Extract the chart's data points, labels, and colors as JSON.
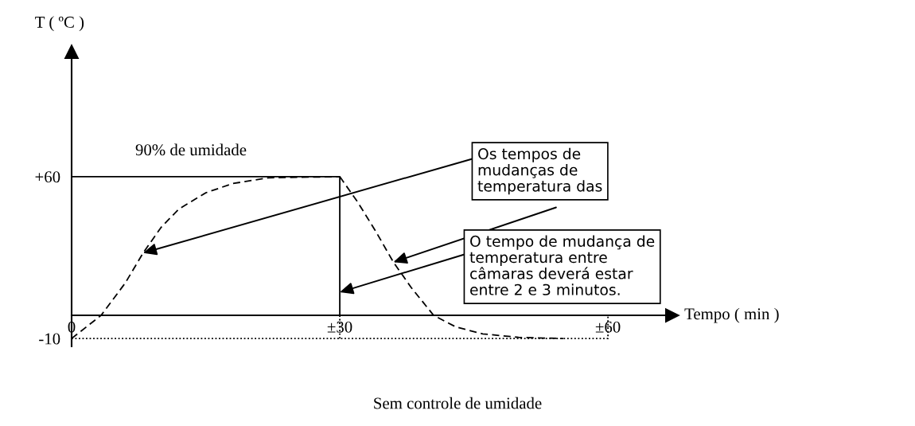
{
  "chart_data": {
    "type": "line",
    "xlabel": "Tempo ( min )",
    "ylabel": "T ( ºC )",
    "xlim": [
      0,
      67.2
    ],
    "ylim": [
      -13.4,
      114
    ],
    "xticks": [
      {
        "value": 0,
        "label": "0"
      },
      {
        "value": 30,
        "label": "±30"
      },
      {
        "value": 60,
        "label": "±60"
      }
    ],
    "yticks": [
      {
        "value": 60,
        "label": "+60"
      },
      {
        "value": -10,
        "label": "-10"
      }
    ],
    "grid": false,
    "legend": false,
    "marker": "none",
    "series": [
      {
        "color": "#000000",
        "line_style": "solid",
        "x": [
          0,
          30,
          30
        ],
        "values": [
          60,
          60,
          0
        ]
      },
      {
        "color": "#000000",
        "line_style": "dotted",
        "x": [
          0,
          60,
          60
        ],
        "values": [
          -10,
          -10,
          0
        ]
      },
      {
        "color": "#000000",
        "line_style": "dotted",
        "x": [
          30,
          30
        ],
        "values": [
          0,
          -10
        ]
      },
      {
        "color": "#000000",
        "line_style": "dashed",
        "x": [
          0,
          3.3,
          6,
          8,
          10,
          12,
          15,
          18,
          22,
          30
        ],
        "values": [
          -10,
          0,
          14,
          27,
          38,
          46,
          53,
          57,
          59.5,
          60
        ]
      },
      {
        "color": "#000000",
        "line_style": "dashed",
        "x": [
          30,
          32,
          34,
          36,
          38,
          40.5,
          43,
          46,
          50,
          55
        ],
        "values": [
          60,
          49,
          36.5,
          23,
          12,
          0,
          -5,
          -8,
          -9.5,
          -10
        ]
      }
    ],
    "annotations": [
      "90% de umidade",
      "Sem controle de umidade",
      {
        "text": "Os tempos de mudanças de temperatura das",
        "x": 8,
        "y": 27
      },
      {
        "text": "O tempo de mudança de temperatura entre câmaras deverá estar entre 2 e 3 minutos.",
        "x": 30,
        "y": 10
      }
    ]
  }
}
